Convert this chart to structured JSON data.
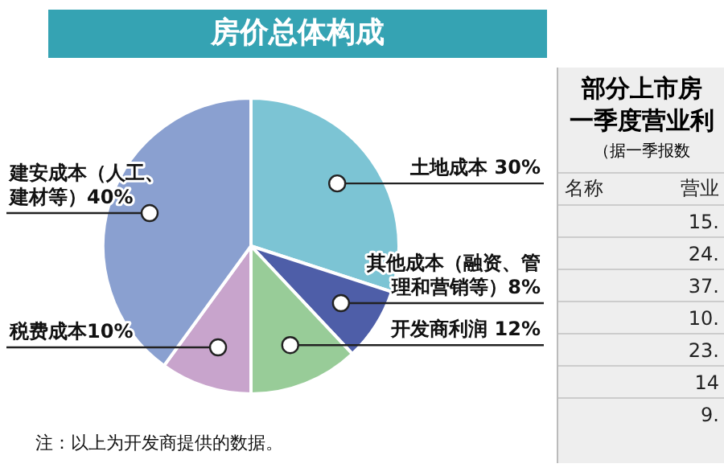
{
  "chart_data": [
    {
      "type": "pie",
      "title": "房价总体构成",
      "categories": [
        "土地成本 ",
        "其他成本（融资、管理和营销等）",
        "开发商利润 ",
        "税费成本",
        "建安成本（人工、建材等）"
      ],
      "values": [
        30,
        8,
        12,
        10,
        40
      ],
      "value_labels": [
        "30%",
        "8%",
        "12%",
        "10%",
        "40%"
      ],
      "colors": [
        "#7cc4d4",
        "#4e5ea8",
        "#98cc98",
        "#c8a4cc",
        "#8aa0d0"
      ],
      "legend": false,
      "annotations": [
        "注：以上为开发商提供的数据。"
      ]
    },
    {
      "type": "other",
      "title": "部分上市房",
      "subtitle": "一季度营业利",
      "annotations": [
        "（据一季报数",
        "名称",
        "营业",
        "15.",
        "24.",
        "37.",
        "10.",
        "23.",
        "14",
        "9."
      ]
    }
  ]
}
